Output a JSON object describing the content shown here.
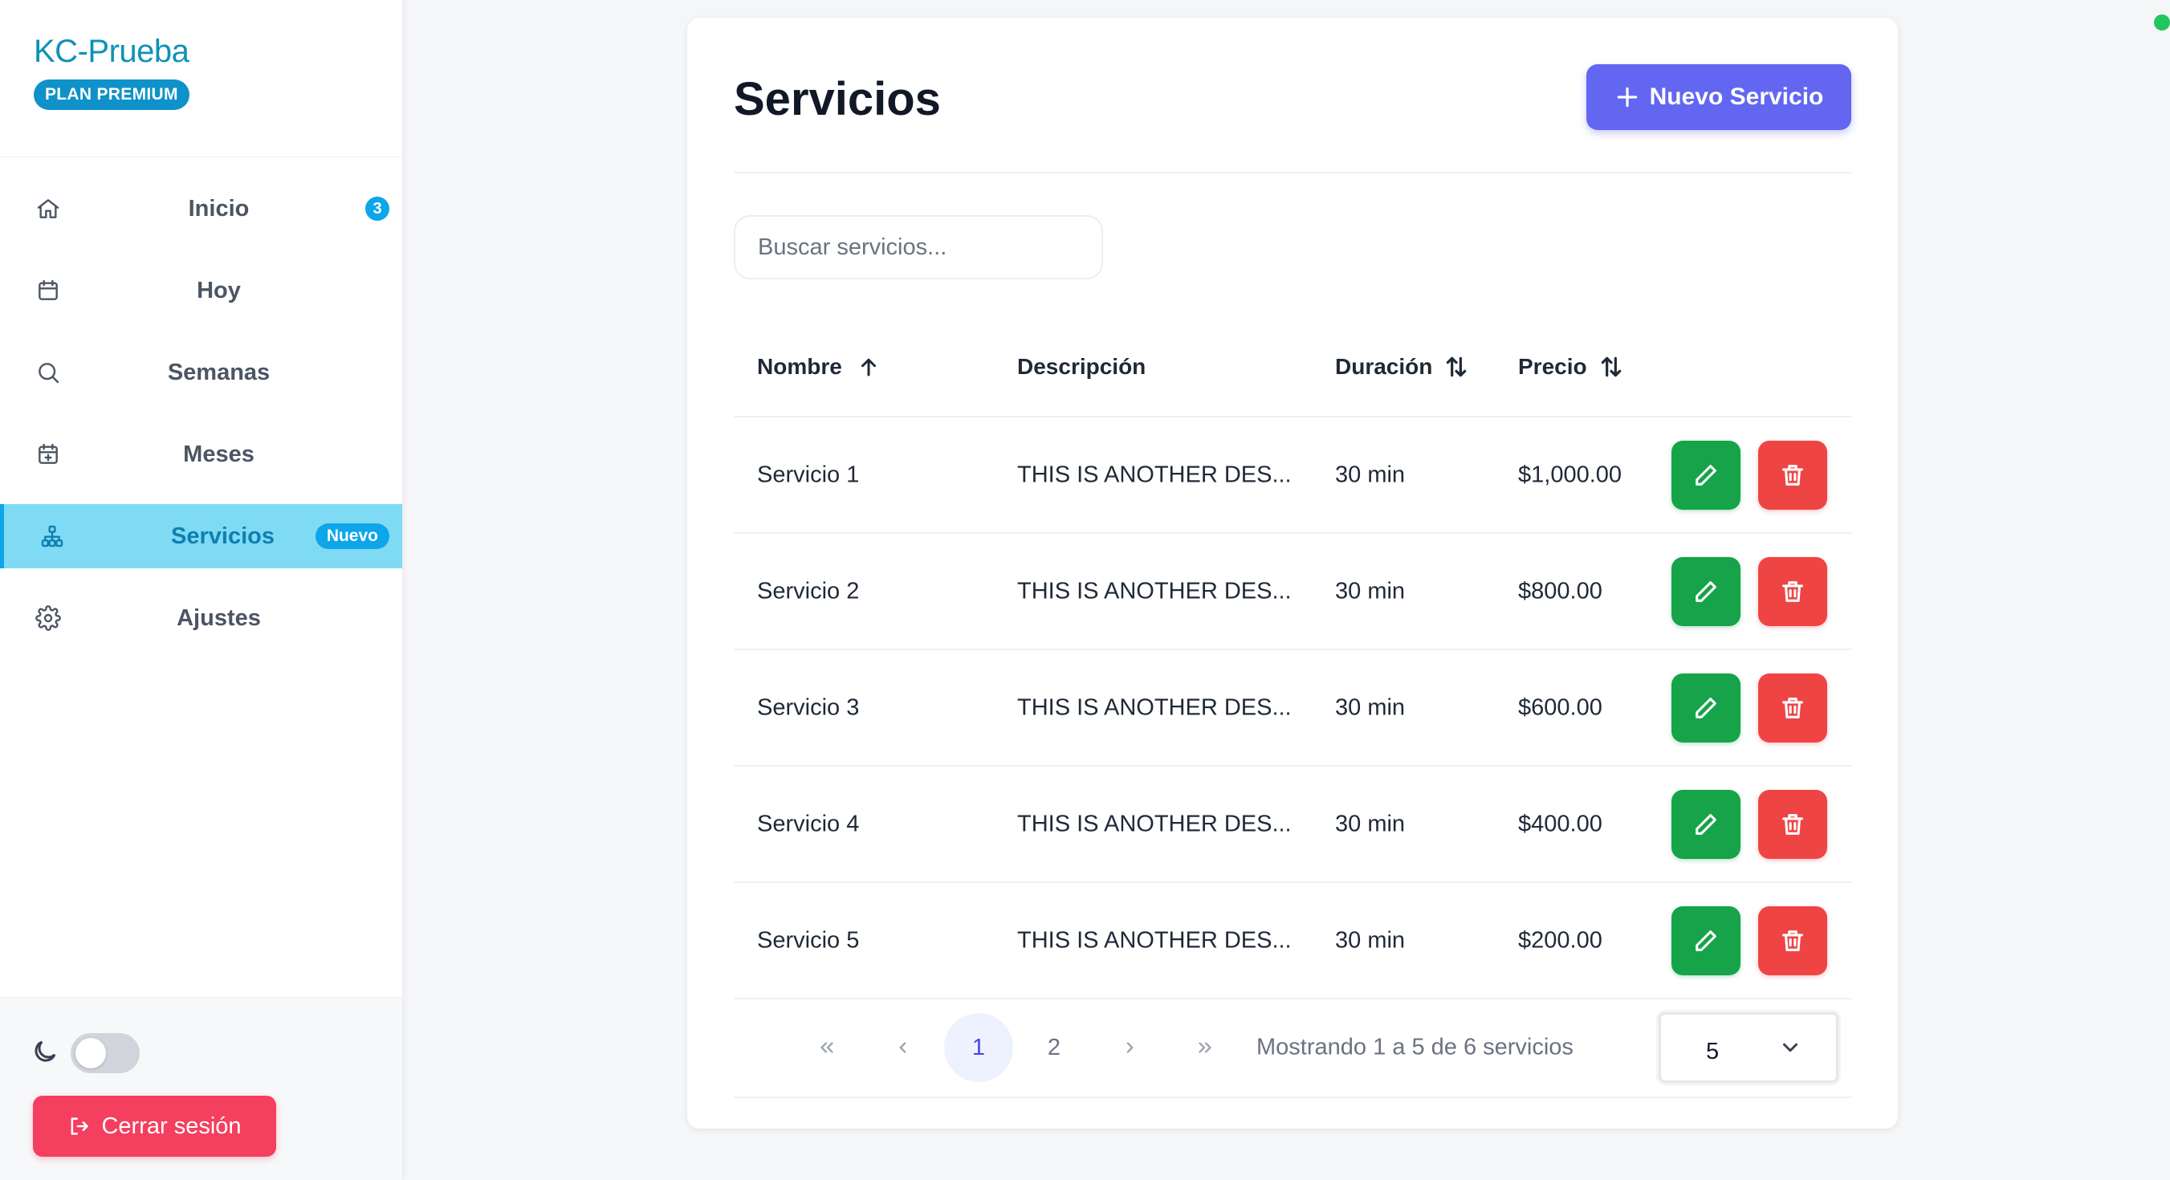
{
  "sidebar": {
    "brand": "KC-Prueba",
    "plan": "PLAN PREMIUM",
    "items": [
      {
        "label": "Inicio",
        "icon": "home-icon",
        "badge": "3"
      },
      {
        "label": "Hoy",
        "icon": "calendar-icon"
      },
      {
        "label": "Semanas",
        "icon": "search-icon"
      },
      {
        "label": "Meses",
        "icon": "calendar-plus-icon"
      },
      {
        "label": "Servicios",
        "icon": "hierarchy-icon",
        "badge": "Nuevo",
        "active": true
      },
      {
        "label": "Ajustes",
        "icon": "gear-icon"
      }
    ],
    "logout_label": "Cerrar sesión",
    "dark_mode": false
  },
  "main": {
    "title": "Servicios",
    "new_button_label": "Nuevo Servicio",
    "search_placeholder": "Buscar servicios...",
    "columns": [
      "Nombre",
      "Descripción",
      "Duración",
      "Precio"
    ],
    "rows": [
      {
        "name": "Servicio 1",
        "description": "THIS IS ANOTHER DES...",
        "duration": "30 min",
        "price": "$1,000.00"
      },
      {
        "name": "Servicio 2",
        "description": "THIS IS ANOTHER DES...",
        "duration": "30 min",
        "price": "$800.00"
      },
      {
        "name": "Servicio 3",
        "description": "THIS IS ANOTHER DES...",
        "duration": "30 min",
        "price": "$600.00"
      },
      {
        "name": "Servicio 4",
        "description": "THIS IS ANOTHER DES...",
        "duration": "30 min",
        "price": "$400.00"
      },
      {
        "name": "Servicio 5",
        "description": "THIS IS ANOTHER DES...",
        "duration": "30 min",
        "price": "$200.00"
      }
    ],
    "pagination": {
      "pages": [
        "1",
        "2"
      ],
      "current": "1",
      "info": "Mostrando 1 a 5 de 6 servicios",
      "page_size": "5"
    }
  },
  "colors": {
    "brand": "#0e92b8",
    "primary": "#6366f1",
    "edit": "#16a34a",
    "delete": "#ef4444",
    "logout": "#f43f5e",
    "active_nav": "#7fdbf4",
    "status": "#22c55e"
  }
}
